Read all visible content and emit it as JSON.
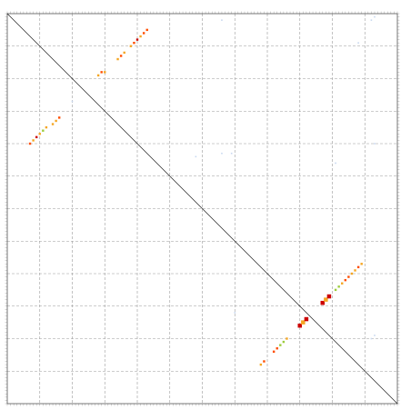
{
  "chart_data": {
    "type": "scatter",
    "title": "",
    "xlabel": "",
    "ylabel": "",
    "xlim": [
      0,
      120
    ],
    "ylim": [
      0,
      120
    ],
    "grid": true,
    "grid_style": "dashed",
    "grid_ticks": [
      10,
      20,
      30,
      40,
      50,
      60,
      70,
      80,
      90,
      100,
      110
    ],
    "reference_line": "diagonal",
    "colors": {
      "strong": "#cc0000",
      "medium": "#ff4d00",
      "weak": "#f5a623",
      "faint": "#9ccc3c",
      "trace": "#c8d8f0",
      "diagonal": "#222222",
      "grid": "#9a9a9a"
    },
    "points": [
      {
        "x": 7,
        "y": 80,
        "level": "medium"
      },
      {
        "x": 8,
        "y": 81,
        "level": "weak"
      },
      {
        "x": 9,
        "y": 82,
        "level": "strong"
      },
      {
        "x": 10,
        "y": 83,
        "level": "weak"
      },
      {
        "x": 11,
        "y": 84,
        "level": "faint"
      },
      {
        "x": 12,
        "y": 85,
        "level": "weak"
      },
      {
        "x": 14,
        "y": 86,
        "level": "weak"
      },
      {
        "x": 15,
        "y": 87,
        "level": "weak"
      },
      {
        "x": 16,
        "y": 88,
        "level": "medium"
      },
      {
        "x": 20,
        "y": 93,
        "level": "trace"
      },
      {
        "x": 28,
        "y": 101,
        "level": "weak"
      },
      {
        "x": 29,
        "y": 102,
        "level": "medium"
      },
      {
        "x": 30,
        "y": 102,
        "level": "weak"
      },
      {
        "x": 34,
        "y": 106,
        "level": "weak"
      },
      {
        "x": 35,
        "y": 107,
        "level": "medium"
      },
      {
        "x": 36,
        "y": 108,
        "level": "weak"
      },
      {
        "x": 38,
        "y": 110,
        "level": "weak"
      },
      {
        "x": 39,
        "y": 111,
        "level": "medium"
      },
      {
        "x": 40,
        "y": 112,
        "level": "strong"
      },
      {
        "x": 41,
        "y": 113,
        "level": "weak"
      },
      {
        "x": 42,
        "y": 114,
        "level": "medium"
      },
      {
        "x": 43,
        "y": 115,
        "level": "medium"
      },
      {
        "x": 66,
        "y": 118,
        "level": "trace"
      },
      {
        "x": 112,
        "y": 118,
        "level": "trace"
      },
      {
        "x": 113,
        "y": 119,
        "level": "trace"
      },
      {
        "x": 58,
        "y": 76,
        "level": "trace"
      },
      {
        "x": 66,
        "y": 77,
        "level": "trace"
      },
      {
        "x": 69,
        "y": 77,
        "level": "trace"
      },
      {
        "x": 108,
        "y": 111,
        "level": "trace"
      },
      {
        "x": 113,
        "y": 80,
        "level": "trace"
      },
      {
        "x": 78,
        "y": 12,
        "level": "weak"
      },
      {
        "x": 79,
        "y": 13,
        "level": "medium"
      },
      {
        "x": 82,
        "y": 16,
        "level": "medium"
      },
      {
        "x": 83,
        "y": 17,
        "level": "medium"
      },
      {
        "x": 84,
        "y": 18,
        "level": "faint"
      },
      {
        "x": 85,
        "y": 19,
        "level": "faint"
      },
      {
        "x": 86,
        "y": 20,
        "level": "weak"
      },
      {
        "x": 90,
        "y": 24,
        "level": "strong",
        "big": true
      },
      {
        "x": 91,
        "y": 25,
        "level": "weak",
        "big": true
      },
      {
        "x": 92,
        "y": 26,
        "level": "strong",
        "big": true
      },
      {
        "x": 97,
        "y": 31,
        "level": "strong",
        "big": true
      },
      {
        "x": 98,
        "y": 32,
        "level": "weak",
        "big": true
      },
      {
        "x": 99,
        "y": 33,
        "level": "strong",
        "big": true
      },
      {
        "x": 101,
        "y": 35,
        "level": "faint"
      },
      {
        "x": 102,
        "y": 36,
        "level": "faint"
      },
      {
        "x": 103,
        "y": 37,
        "level": "weak"
      },
      {
        "x": 104,
        "y": 38,
        "level": "medium"
      },
      {
        "x": 105,
        "y": 39,
        "level": "medium"
      },
      {
        "x": 106,
        "y": 40,
        "level": "weak"
      },
      {
        "x": 107,
        "y": 41,
        "level": "weak"
      },
      {
        "x": 108,
        "y": 42,
        "level": "medium"
      },
      {
        "x": 109,
        "y": 43,
        "level": "weak"
      },
      {
        "x": 70,
        "y": 28,
        "level": "trace"
      },
      {
        "x": 101,
        "y": 74,
        "level": "trace"
      },
      {
        "x": 112,
        "y": 20,
        "level": "trace"
      },
      {
        "x": 113,
        "y": 21,
        "level": "trace"
      }
    ]
  }
}
